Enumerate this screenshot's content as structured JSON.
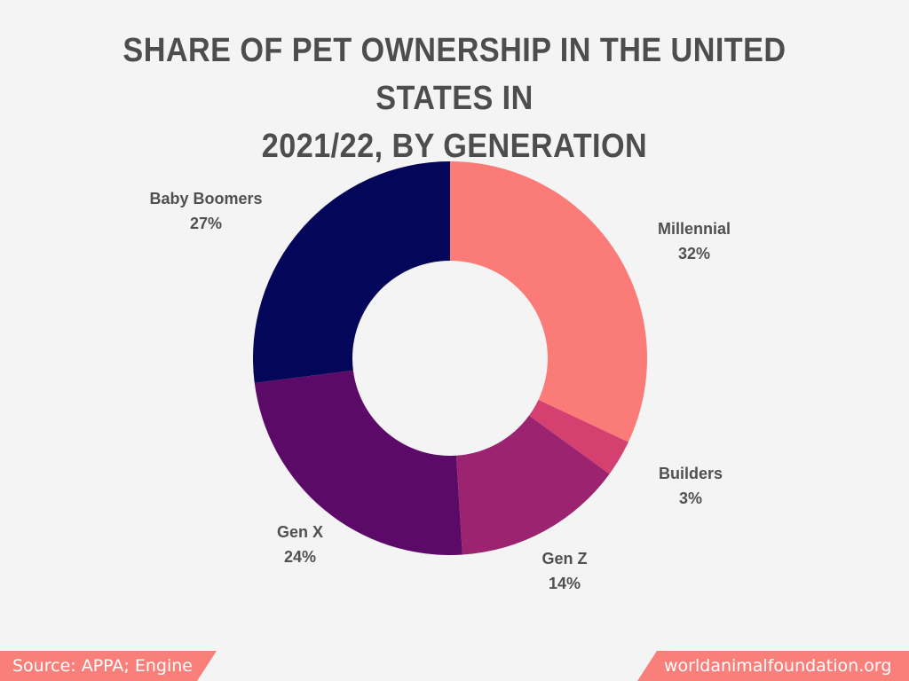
{
  "title_lines": [
    "SHARE OF PET OWNERSHIP IN THE UNITED STATES IN",
    "2021/22, BY GENERATION"
  ],
  "chart_data": {
    "type": "pie",
    "donut": true,
    "title": "SHARE OF PET OWNERSHIP IN THE UNITED STATES IN 2021/22, BY GENERATION",
    "slices": [
      {
        "label": "Millennial",
        "value": 32,
        "value_label": "32%",
        "color": "#fb7b78"
      },
      {
        "label": "Builders",
        "value": 3,
        "value_label": "3%",
        "color": "#d4406f"
      },
      {
        "label": "Gen Z",
        "value": 14,
        "value_label": "14%",
        "color": "#9c2370"
      },
      {
        "label": "Gen X",
        "value": 24,
        "value_label": "24%",
        "color": "#5c0a67"
      },
      {
        "label": "Baby Boomers",
        "value": 27,
        "value_label": "27%",
        "color": "#040659"
      }
    ]
  },
  "footer": {
    "source": "Source: APPA; Engine",
    "site": "worldanimalfoundation.org",
    "accent_color": "#f97f7a"
  }
}
